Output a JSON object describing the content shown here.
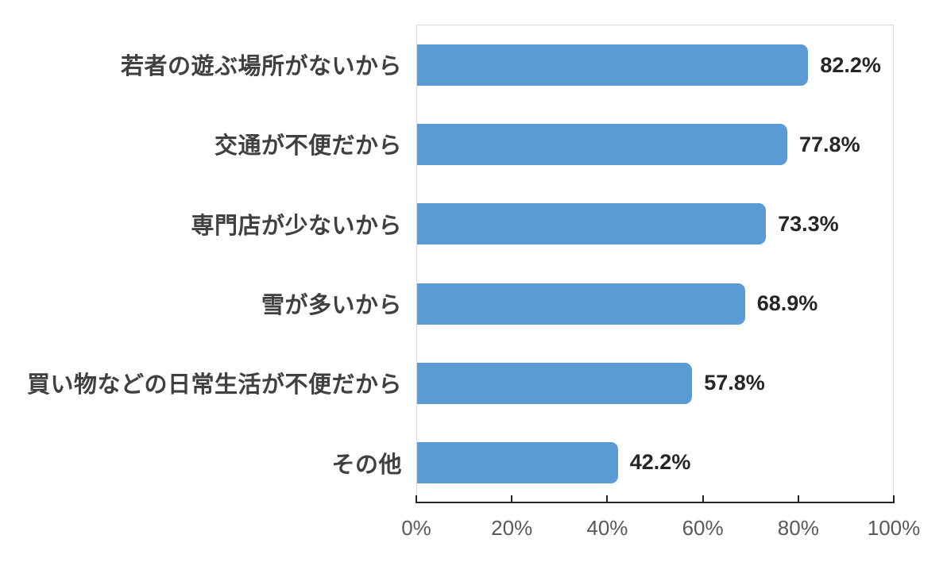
{
  "chart_data": {
    "type": "bar",
    "orientation": "horizontal",
    "title": "",
    "categories": [
      "若者の遊ぶ場所がないから",
      "交通が不便だから",
      "専門店が少ないから",
      "雪が多いから",
      "買い物などの日常生活が不便だから",
      "その他"
    ],
    "values": [
      82.2,
      77.8,
      73.3,
      68.9,
      57.8,
      42.2
    ],
    "data_labels": [
      "82.2%",
      "77.8%",
      "73.3%",
      "68.9%",
      "57.8%",
      "42.2%"
    ],
    "x_ticks": [
      "0%",
      "20%",
      "40%",
      "60%",
      "80%",
      "100%"
    ],
    "x_tick_positions": [
      0,
      20,
      40,
      60,
      80,
      100
    ],
    "xlim": [
      0,
      100
    ],
    "xlabel": "",
    "ylabel": "",
    "grid": false,
    "legend": false,
    "colors": {
      "bar": "#5b9bd5",
      "axis_line": "#262626",
      "plot_border": "#d9d9d9",
      "category_label": "#404040",
      "data_label": "#262626",
      "tick_label": "#595959",
      "background": "#ffffff"
    }
  }
}
